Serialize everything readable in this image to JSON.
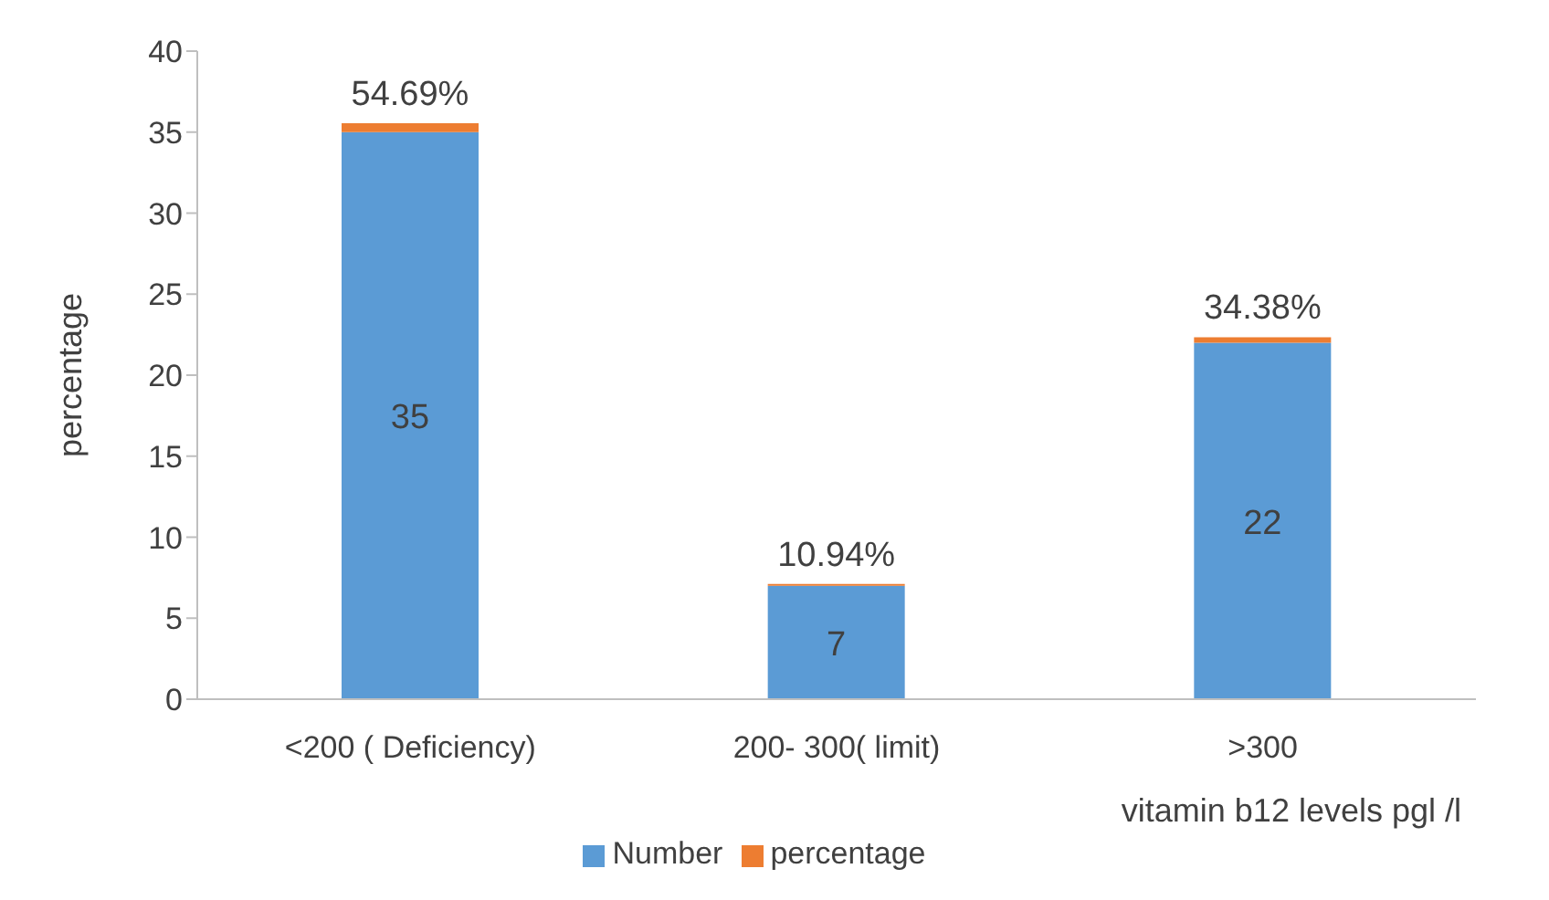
{
  "chart_data": {
    "type": "bar",
    "stacked": true,
    "ylabel": "percentage",
    "xlabel": "vitamin b12 levels  pgl /l",
    "categories": [
      "<200 (  Deficiency)",
      "200- 300( limit)",
      ">300"
    ],
    "series": [
      {
        "name": "Number",
        "color": "#5b9bd5",
        "values": [
          35,
          7,
          22
        ],
        "value_labels": [
          "35",
          "7",
          "22"
        ]
      },
      {
        "name": "percentage",
        "color": "#ed7d31",
        "values": [
          0.5469,
          0.1094,
          0.3438
        ],
        "value_labels": [
          "54.69%",
          "10.94%",
          "34.38%"
        ]
      }
    ],
    "ylim": [
      0,
      40
    ],
    "yticks": [
      0,
      5,
      10,
      15,
      20,
      25,
      30,
      35,
      40
    ],
    "grid": false,
    "legend": "bottom"
  }
}
